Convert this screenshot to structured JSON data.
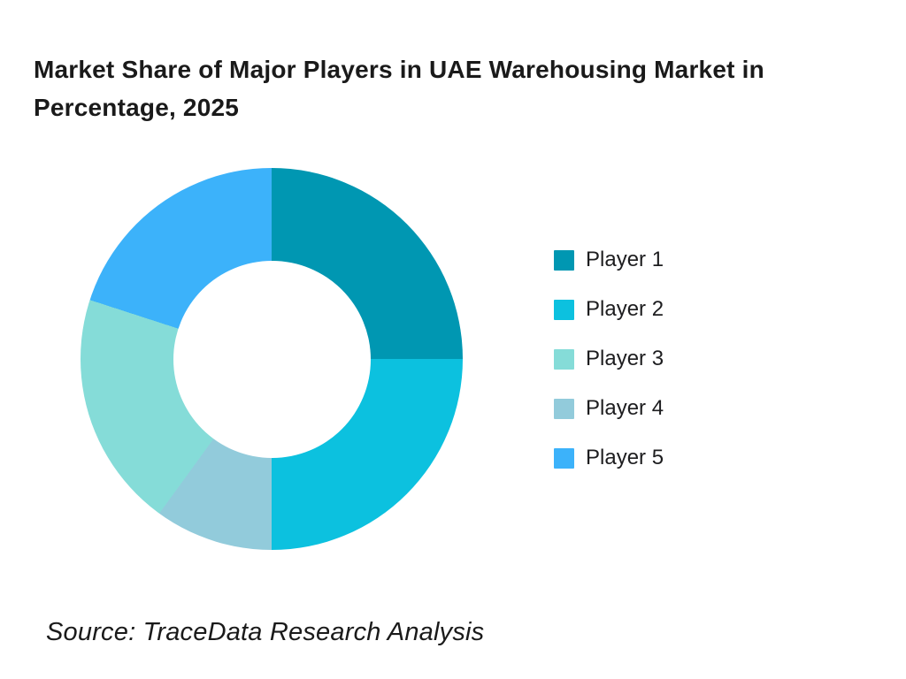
{
  "title": {
    "text": "Market Share of Major Players in UAE Warehousing Market in Percentage, 2025",
    "lines": [
      "Market Share of Major Players in UAE Warehousing Market in",
      "Percentage, 2025"
    ],
    "color": "#1a1a1a"
  },
  "source_note": "Source: TraceData Research Analysis",
  "chart_data": {
    "type": "pie",
    "subtype": "donut",
    "title": "Market Share of Major Players in UAE Warehousing Market in Percentage, 2025",
    "unit": "percent",
    "categories": [
      "Player 1",
      "Player 2",
      "Player 3",
      "Player 4",
      "Player 5"
    ],
    "values": [
      25,
      25,
      20,
      10,
      20
    ],
    "colors": [
      "#0097b2",
      "#0cc1df",
      "#85dcd8",
      "#92cbdb",
      "#3cb2fa"
    ],
    "legend_position": "right",
    "grid": false,
    "inner_radius_ratio": 0.52,
    "start_angle_deg": 0,
    "direction": "clockwise",
    "segments_clockwise": [
      {
        "label": "Player 1",
        "value": 25,
        "color": "#0097b2"
      },
      {
        "label": "Player 2",
        "value": 25,
        "color": "#0cc1df"
      },
      {
        "label": "Player 4",
        "value": 10,
        "color": "#92cbdb"
      },
      {
        "label": "Player 3",
        "value": 20,
        "color": "#85dcd8"
      },
      {
        "label": "Player 5",
        "value": 20,
        "color": "#3cb2fa"
      }
    ]
  }
}
